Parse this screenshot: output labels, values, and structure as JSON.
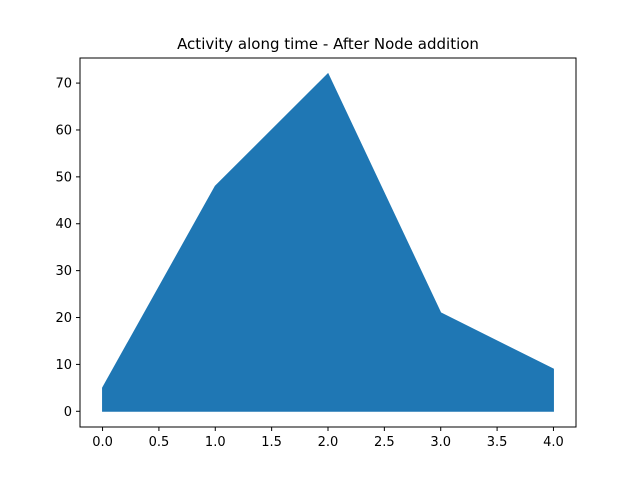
{
  "chart_data": {
    "type": "area",
    "title": "Activity along time - After Node addition",
    "xlabel": "",
    "ylabel": "",
    "x": [
      0,
      1,
      2,
      3,
      4
    ],
    "series": [
      {
        "values": [
          5,
          48,
          72,
          21,
          9
        ],
        "color": "#1f77b4"
      }
    ],
    "xlim": [
      -0.2,
      4.2
    ],
    "ylim": [
      -3.35,
      75.35
    ],
    "xticks": [
      0.0,
      0.5,
      1.0,
      1.5,
      2.0,
      2.5,
      3.0,
      3.5,
      4.0
    ],
    "xtick_labels": [
      "0.0",
      "0.5",
      "1.0",
      "1.5",
      "2.0",
      "2.5",
      "3.0",
      "3.5",
      "4.0"
    ],
    "yticks": [
      0,
      10,
      20,
      30,
      40,
      50,
      60,
      70
    ],
    "ytick_labels": [
      "0",
      "10",
      "20",
      "30",
      "40",
      "50",
      "60",
      "70"
    ],
    "grid": false,
    "legend": "none"
  }
}
